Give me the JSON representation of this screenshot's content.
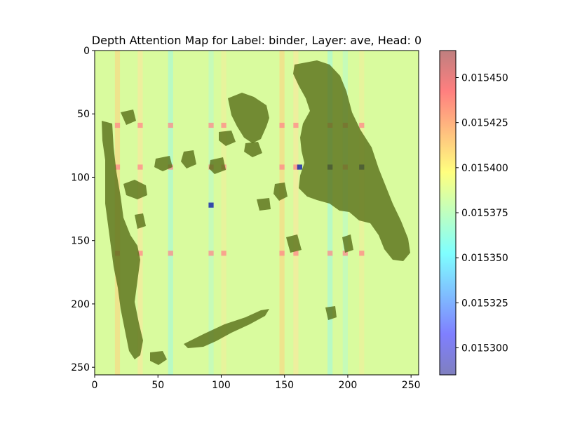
{
  "chart_data": {
    "type": "heatmap",
    "title": "Depth Attention Map for Label: binder, Layer: ave, Head: 0",
    "xlabel": "",
    "ylabel": "",
    "xlim": [
      0,
      256
    ],
    "ylim": [
      256,
      0
    ],
    "x_ticks": [
      "0",
      "50",
      "100",
      "150",
      "200",
      "250"
    ],
    "y_ticks": [
      "0",
      "50",
      "100",
      "150",
      "200",
      "250"
    ],
    "colorbar": {
      "range": [
        0.015285,
        0.015465
      ],
      "ticks": [
        "0.015300",
        "0.015325",
        "0.015350",
        "0.015375",
        "0.015400",
        "0.015425",
        "0.015450"
      ],
      "colormap": "jet",
      "alpha": 0.5
    },
    "grid": false,
    "hot_columns": [
      16,
      34,
      58,
      90,
      100,
      146,
      157,
      184,
      196,
      209
    ],
    "hot_rows": [
      57,
      90,
      158
    ],
    "peak_cells": [
      [
        209,
        90
      ],
      [
        90,
        120
      ],
      [
        184,
        90
      ],
      [
        160,
        90
      ]
    ],
    "background_overlay": "dark olive depth silhouette (islands, coastline and elongated landmass)"
  }
}
